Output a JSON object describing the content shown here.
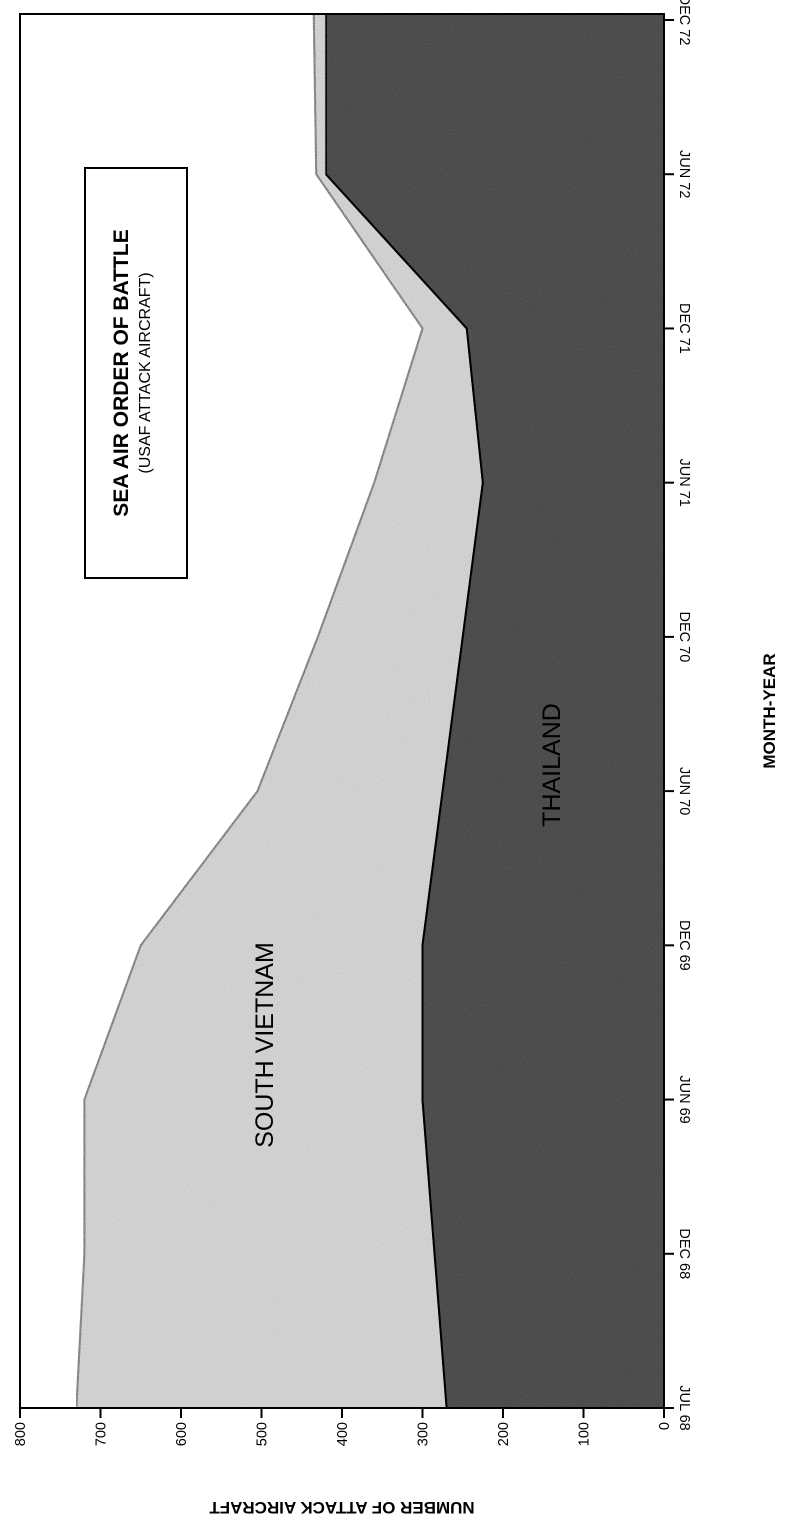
{
  "chart_data": {
    "type": "area",
    "stacked": true,
    "orientation": "rotated-90-clockwise",
    "title": "SEA AIR ORDER OF BATTLE",
    "subtitle": "(USAF ATTACK AIRCRAFT)",
    "xlabel": "MONTH-YEAR",
    "ylabel": "NUMBER OF ATTACK AIRCRAFT",
    "x_ticks": [
      "JUL 68",
      "DEC 68",
      "JUN 69",
      "DEC 69",
      "JUN 70",
      "DEC 70",
      "JUN 71",
      "DEC 71",
      "JUN 72",
      "DEC 72"
    ],
    "y_ticks": [
      "0",
      "100",
      "200",
      "300",
      "400",
      "500",
      "600",
      "700",
      "800"
    ],
    "ylim": [
      0,
      800
    ],
    "grid": false,
    "x": [
      "JUL 68",
      "DEC 68",
      "JUN 69",
      "DEC 69",
      "JUN 70",
      "DEC 70",
      "JUN 71",
      "DEC 71",
      "JUN 72",
      "DEC 72"
    ],
    "series": [
      {
        "name": "THAILAND",
        "values": [
          270,
          285,
          300,
          300,
          275,
          250,
          225,
          245,
          420,
          420
        ]
      },
      {
        "name": "SOUTH VIETNAM",
        "values": [
          460,
          435,
          420,
          350,
          230,
          180,
          135,
          55,
          12,
          15
        ]
      }
    ],
    "colors": {
      "thailand": "#5a5a5a",
      "south_vietnam": "#bdbdbd",
      "outline": "#000000"
    }
  }
}
